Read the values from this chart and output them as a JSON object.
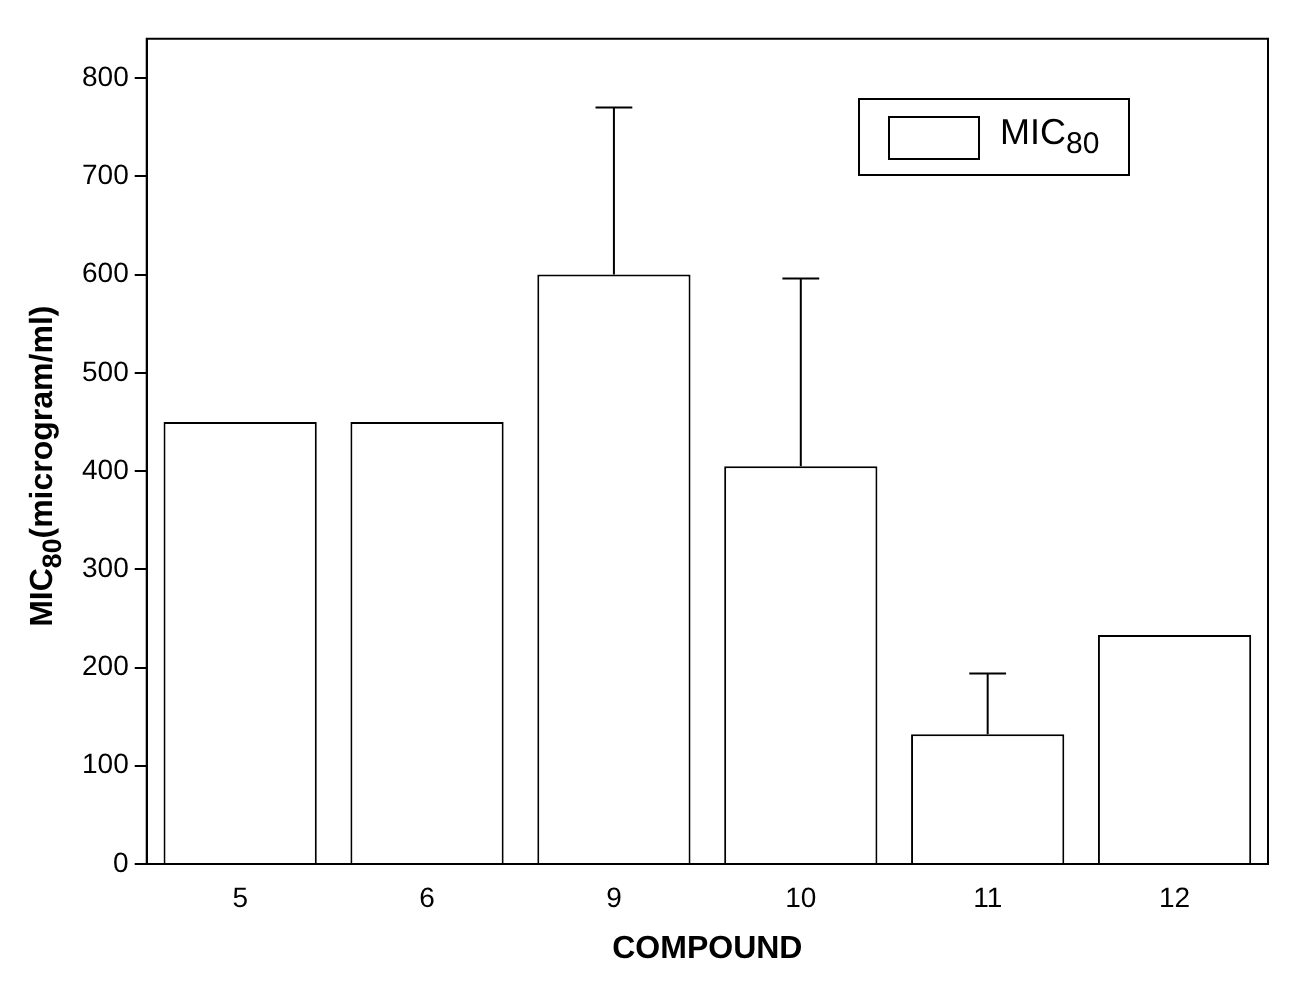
{
  "chart_data": {
    "type": "bar",
    "xlabel": "COMPOUND",
    "ylabel": "MIC$_{80}$(microgram/ml)",
    "categories": [
      "5",
      "6",
      "9",
      "10",
      "11",
      "12"
    ],
    "series": [
      {
        "name": "MIC$_{80}$",
        "color": "#ffffff",
        "values": [
          450,
          450,
          600,
          405,
          132,
          233
        ],
        "errors": [
          null,
          null,
          [
            600,
            770
          ],
          [
            405,
            596
          ],
          [
            132,
            194
          ],
          null
        ]
      }
    ],
    "ylim": [
      0,
      840
    ],
    "yticks": [
      0,
      100,
      200,
      300,
      400,
      500,
      600,
      700,
      800
    ],
    "grid": false,
    "legend": "top right"
  }
}
